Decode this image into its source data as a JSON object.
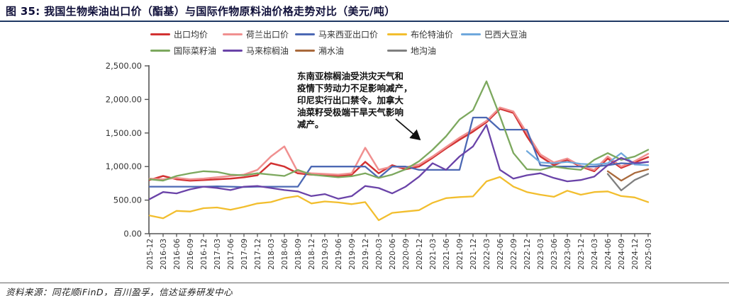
{
  "figure": {
    "title": "图 35:  我国生物柴油出口价（酯基）与国际作物原料油价格走势对比（美元/吨）",
    "source": "资料来源：同花顺iFinD，百川盈孚，信达证券研发中心"
  },
  "annotation": {
    "text": "东南亚棕榈油受洪灾天气和\n疫情下劳动力不足影响减产，\n印尼实行出口禁令。加拿大\n油菜籽受极端干旱天气影响\n减产。"
  },
  "colors": {
    "title_rule": "#1f3864",
    "axis": "#555555",
    "tick_label": "#333333",
    "annotation_arrow": "#111111"
  },
  "chart_data": {
    "type": "line",
    "title": "",
    "xlabel": "",
    "ylabel": "",
    "ylim": [
      0,
      2500
    ],
    "grid": false,
    "legend_position": "top",
    "ytick_labels": [
      "0.00",
      "500.00",
      "1,000.00",
      "1,500.00",
      "2,000.00",
      "2,500.00"
    ],
    "ytick_values": [
      0,
      500,
      1000,
      1500,
      2000,
      2500
    ],
    "categories": [
      "2015-12",
      "2016-03",
      "2016-06",
      "2016-09",
      "2016-12",
      "2017-03",
      "2017-06",
      "2017-09",
      "2017-12",
      "2018-03",
      "2018-06",
      "2018-09",
      "2018-12",
      "2019-03",
      "2019-06",
      "2019-09",
      "2019-12",
      "2020-03",
      "2020-06",
      "2020-09",
      "2020-12",
      "2021-03",
      "2021-06",
      "2021-09",
      "2021-12",
      "2022-03",
      "2022-06",
      "2022-09",
      "2022-12",
      "2023-03",
      "2023-06",
      "2023-09",
      "2023-12",
      "2024-03",
      "2024-06",
      "2024-09",
      "2024-12",
      "2025-03"
    ],
    "series": [
      {
        "name": "出口均价",
        "color": "#d23232",
        "width": 2.5,
        "values": [
          800,
          860,
          810,
          790,
          800,
          810,
          820,
          840,
          870,
          1050,
          1000,
          900,
          880,
          870,
          860,
          880,
          1070,
          900,
          1020,
          960,
          1000,
          1130,
          1270,
          1400,
          1520,
          1660,
          1860,
          1800,
          1450,
          1150,
          1020,
          1100,
          1000,
          930,
          1120,
          980,
          1060,
          1140
        ]
      },
      {
        "name": "荷兰出口价",
        "color": "#f09090",
        "width": 2.5,
        "values": [
          820,
          810,
          830,
          810,
          820,
          840,
          860,
          880,
          950,
          1150,
          1300,
          920,
          900,
          890,
          880,
          900,
          1280,
          950,
          1000,
          990,
          1030,
          1150,
          1290,
          1430,
          1550,
          1680,
          1880,
          1820,
          1500,
          1180,
          1060,
          1120,
          1010,
          950,
          1150,
          1000,
          1080,
          1190
        ]
      },
      {
        "name": "马来西亚出口价",
        "color": "#4c68b4",
        "width": 2.3,
        "values": [
          700,
          700,
          700,
          700,
          700,
          705,
          700,
          695,
          700,
          700,
          700,
          700,
          1000,
          1000,
          1000,
          1000,
          1000,
          830,
          1000,
          1000,
          950,
          950,
          950,
          950,
          1730,
          1730,
          1550,
          1550,
          1550,
          1020,
          1000,
          1000,
          1000,
          1000,
          1020,
          1050,
          1040,
          1070
        ]
      },
      {
        "name": "布伦特油价",
        "color": "#f2be2e",
        "width": 2.3,
        "values": [
          270,
          230,
          340,
          330,
          380,
          390,
          355,
          400,
          450,
          470,
          530,
          560,
          450,
          480,
          465,
          440,
          470,
          200,
          310,
          330,
          350,
          460,
          530,
          545,
          555,
          780,
          845,
          700,
          620,
          580,
          550,
          640,
          580,
          620,
          630,
          560,
          540,
          470
        ]
      },
      {
        "name": "巴西大豆油",
        "color": "#6fa8dc",
        "width": 2.3,
        "values": [
          null,
          null,
          null,
          null,
          null,
          null,
          null,
          null,
          null,
          null,
          null,
          null,
          null,
          null,
          null,
          null,
          null,
          null,
          null,
          null,
          null,
          null,
          null,
          null,
          null,
          null,
          null,
          null,
          1230,
          1060,
          1050,
          1070,
          1040,
          1030,
          1050,
          1200,
          1030,
          1020
        ]
      },
      {
        "name": "国际菜籽油",
        "color": "#7ca85e",
        "width": 2.3,
        "values": [
          810,
          790,
          860,
          900,
          930,
          920,
          880,
          870,
          900,
          880,
          860,
          950,
          880,
          860,
          840,
          855,
          900,
          830,
          880,
          960,
          1080,
          1250,
          1450,
          1700,
          1840,
          2270,
          1750,
          1200,
          960,
          950,
          1000,
          970,
          950,
          1100,
          1200,
          1100,
          1150,
          1250
        ]
      },
      {
        "name": "马来棕榈油",
        "color": "#6a43a8",
        "width": 2.3,
        "values": [
          515,
          620,
          600,
          660,
          700,
          680,
          650,
          700,
          710,
          680,
          650,
          630,
          560,
          590,
          520,
          560,
          710,
          680,
          600,
          700,
          850,
          1050,
          950,
          1150,
          1300,
          1620,
          950,
          820,
          870,
          900,
          830,
          780,
          800,
          850,
          1020,
          1130,
          1050,
          1070
        ]
      },
      {
        "name": "潲水油",
        "color": "#a9693b",
        "width": 2.3,
        "values": [
          null,
          null,
          null,
          null,
          null,
          null,
          null,
          null,
          null,
          null,
          null,
          null,
          null,
          null,
          null,
          null,
          null,
          null,
          null,
          null,
          null,
          null,
          null,
          null,
          null,
          null,
          null,
          null,
          null,
          null,
          null,
          null,
          null,
          null,
          930,
          790,
          905,
          960
        ]
      },
      {
        "name": "地沟油",
        "color": "#7f7f7f",
        "width": 2.3,
        "values": [
          null,
          null,
          null,
          null,
          null,
          null,
          null,
          null,
          null,
          null,
          null,
          null,
          null,
          null,
          null,
          null,
          null,
          null,
          null,
          null,
          null,
          null,
          null,
          null,
          null,
          null,
          null,
          null,
          null,
          null,
          null,
          null,
          null,
          null,
          890,
          645,
          800,
          890
        ]
      }
    ],
    "legend_rows": [
      [
        0,
        1,
        2,
        3,
        4
      ],
      [
        5,
        6,
        7,
        8
      ]
    ]
  }
}
